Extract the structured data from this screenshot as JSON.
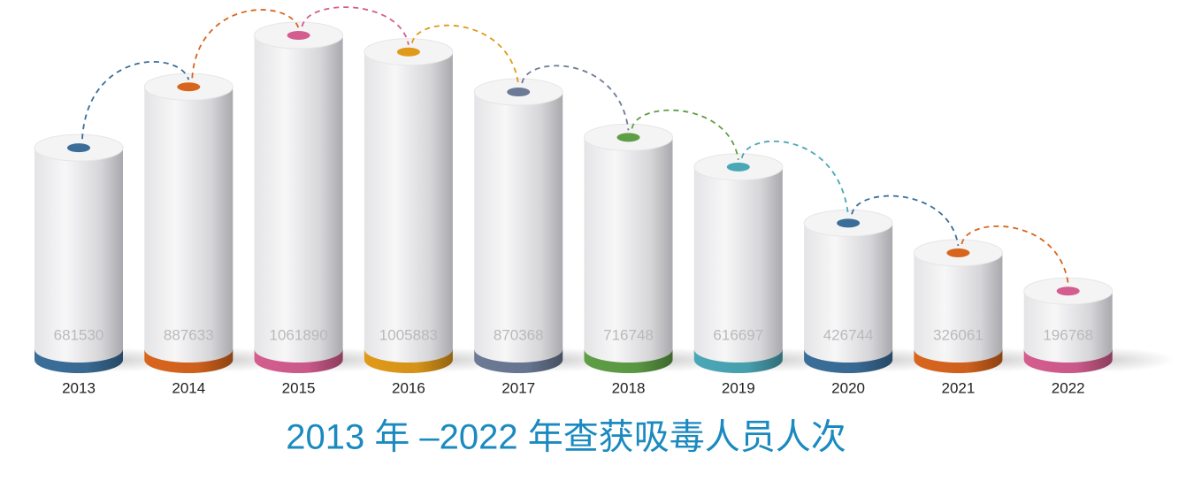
{
  "chart_data": {
    "type": "cylinder-bar",
    "title": "2013 年 –2022 年查获吸毒人员人次",
    "categories": [
      "2013",
      "2014",
      "2015",
      "2016",
      "2017",
      "2018",
      "2019",
      "2020",
      "2021",
      "2022"
    ],
    "values": [
      681530,
      887633,
      1061890,
      1005883,
      870368,
      716748,
      616697,
      426744,
      326061,
      196768
    ],
    "colors": [
      "#3a6e99",
      "#d8651e",
      "#d45d8f",
      "#e09a1a",
      "#6c7a96",
      "#5e9e45",
      "#4aa7b6",
      "#3a6e99",
      "#d8651e",
      "#d45d8f"
    ]
  }
}
